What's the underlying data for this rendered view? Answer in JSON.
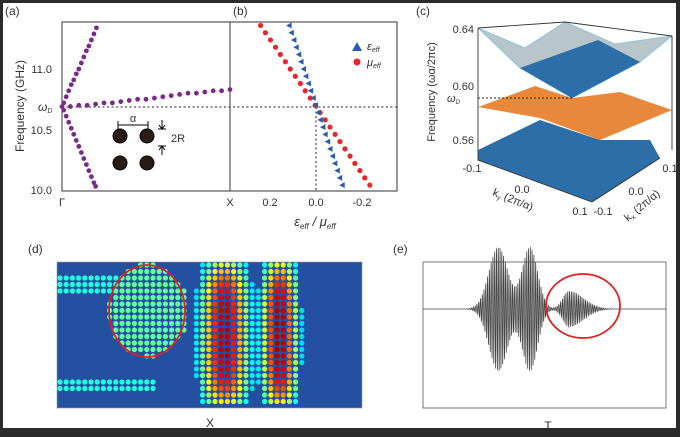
{
  "panel_labels": {
    "a": "(a)",
    "b": "(b)",
    "c": "(c)",
    "d": "(d)",
    "e": "(e)"
  },
  "chart_data": [
    {
      "id": "a",
      "type": "scatter",
      "title": "",
      "xlabel": "",
      "ylabel": "Frequency (GHz)",
      "xticks": [
        "Γ",
        "X"
      ],
      "yticks": [
        {
          "value": 10.0,
          "label": "10.0"
        },
        {
          "value": 10.5,
          "label": "10.5"
        },
        {
          "value": 11.0,
          "label": "11.0"
        }
      ],
      "omega_d": {
        "value": 10.69,
        "label": "ω",
        "sub": "D"
      },
      "ylim": [
        10.0,
        11.39
      ],
      "xlim": [
        0,
        1
      ],
      "color": "#7b2a8c",
      "series": [
        {
          "name": "upper-band",
          "points": [
            [
              0.01,
              10.72
            ],
            [
              0.025,
              10.77
            ],
            [
              0.04,
              10.82
            ],
            [
              0.055,
              10.87
            ],
            [
              0.07,
              10.91
            ],
            [
              0.085,
              10.96
            ],
            [
              0.1,
              11.0
            ],
            [
              0.115,
              11.05
            ],
            [
              0.13,
              11.1
            ],
            [
              0.145,
              11.15
            ],
            [
              0.16,
              11.19
            ],
            [
              0.175,
              11.24
            ],
            [
              0.19,
              11.29
            ],
            [
              0.205,
              11.34
            ]
          ]
        },
        {
          "name": "lower-band",
          "points": [
            [
              0.01,
              10.66
            ],
            [
              0.025,
              10.61
            ],
            [
              0.04,
              10.56
            ],
            [
              0.055,
              10.51
            ],
            [
              0.07,
              10.46
            ],
            [
              0.085,
              10.41
            ],
            [
              0.1,
              10.36
            ],
            [
              0.115,
              10.31
            ],
            [
              0.13,
              10.26
            ],
            [
              0.145,
              10.21
            ],
            [
              0.16,
              10.16
            ],
            [
              0.175,
              10.11
            ],
            [
              0.19,
              10.06
            ],
            [
              0.2,
              10.03
            ]
          ]
        },
        {
          "name": "flat-band",
          "points": [
            [
              0,
              10.69
            ],
            [
              0.05,
              10.69
            ],
            [
              0.1,
              10.7
            ],
            [
              0.15,
              10.7
            ],
            [
              0.2,
              10.71
            ],
            [
              0.25,
              10.72
            ],
            [
              0.3,
              10.72
            ],
            [
              0.35,
              10.73
            ],
            [
              0.4,
              10.74
            ],
            [
              0.45,
              10.75
            ],
            [
              0.5,
              10.75
            ],
            [
              0.55,
              10.76
            ],
            [
              0.6,
              10.77
            ],
            [
              0.65,
              10.78
            ],
            [
              0.7,
              10.79
            ],
            [
              0.75,
              10.8
            ],
            [
              0.8,
              10.8
            ],
            [
              0.85,
              10.81
            ],
            [
              0.9,
              10.82
            ],
            [
              0.95,
              10.82
            ],
            [
              1.0,
              10.83
            ]
          ]
        }
      ],
      "inset": {
        "lattice_label": "α",
        "radius_label": "2R"
      }
    },
    {
      "id": "b",
      "type": "scatter",
      "xlabel": "ε_eff / μ_eff",
      "xlabel_parts": {
        "eps": "ε",
        "eps_sub": "eff",
        "slash": " / ",
        "mu": "μ",
        "mu_sub": "eff"
      },
      "xticks": [
        {
          "value": 0.2,
          "label": "0.2"
        },
        {
          "value": 0.0,
          "label": "0.0"
        },
        {
          "value": -0.2,
          "label": "-0.2"
        }
      ],
      "xlim": [
        0.374,
        -0.34
      ],
      "ylim": [
        10.0,
        11.39
      ],
      "frequency": [
        11.36,
        11.3,
        11.24,
        11.18,
        11.12,
        11.06,
        11.0,
        10.94,
        10.88,
        10.82,
        10.76,
        10.7,
        10.64,
        10.58,
        10.52,
        10.46,
        10.4,
        10.34,
        10.28,
        10.22,
        10.16,
        10.1,
        10.04
      ],
      "series": [
        {
          "name": "ε",
          "sub": "eff",
          "marker": "triangle",
          "color": "#2a5db0",
          "values": [
            0.117,
            0.107,
            0.096,
            0.086,
            0.075,
            0.065,
            0.054,
            0.044,
            0.033,
            0.023,
            0.012,
            0.002,
            -0.009,
            -0.019,
            -0.03,
            -0.04,
            -0.051,
            -0.061,
            -0.072,
            -0.082,
            -0.093,
            -0.103,
            -0.114
          ]
        },
        {
          "name": "μ",
          "sub": "eff",
          "marker": "circle",
          "color": "#e8262a",
          "values": [
            0.241,
            0.22,
            0.198,
            0.176,
            0.155,
            0.133,
            0.112,
            0.09,
            0.068,
            0.047,
            0.025,
            0.004,
            -0.018,
            -0.04,
            -0.061,
            -0.083,
            -0.104,
            -0.126,
            -0.148,
            -0.169,
            -0.191,
            -0.212,
            -0.234
          ]
        }
      ],
      "legend": "top-right"
    },
    {
      "id": "c",
      "type": "surface",
      "ylabel": "Frequency (ωα/2πc)",
      "zticks": [
        "0.64",
        "0.60",
        "0.56"
      ],
      "omega_d": {
        "label": "ω",
        "sub": "D"
      },
      "ky_ticks": [
        "-0.1",
        "0.0",
        "0.1"
      ],
      "kx_ticks": [
        "-0.1",
        "0.0",
        "0.1"
      ],
      "ky_label": {
        "k": "k",
        "sub": "y",
        "unit": " (2π/α)"
      },
      "kx_label": {
        "k": "k",
        "sub": "x",
        "unit": " (2π/α)"
      },
      "surfaces": [
        {
          "name": "upper-cone",
          "color": "#2c6ea8"
        },
        {
          "name": "flat-band",
          "color": "#e8883a"
        },
        {
          "name": "lower-cone",
          "color": "#2c6ea8"
        }
      ]
    },
    {
      "id": "d",
      "type": "heatmap",
      "xlabel": "X",
      "colormap": "jet",
      "highlight": "red-ellipse"
    },
    {
      "id": "e",
      "type": "line",
      "xlabel": "T",
      "color": "#444444",
      "packets": [
        {
          "center": 0.31,
          "width": 0.055,
          "amplitude": 1.0,
          "tail": 1.0
        },
        {
          "center": 0.44,
          "width": 0.045,
          "amplitude": 1.0,
          "tail": 1.0
        },
        {
          "center": 0.6,
          "width": 0.035,
          "amplitude": 0.29,
          "tail": 2.4
        }
      ],
      "cycles": 62,
      "highlight": "red-ellipse"
    }
  ]
}
